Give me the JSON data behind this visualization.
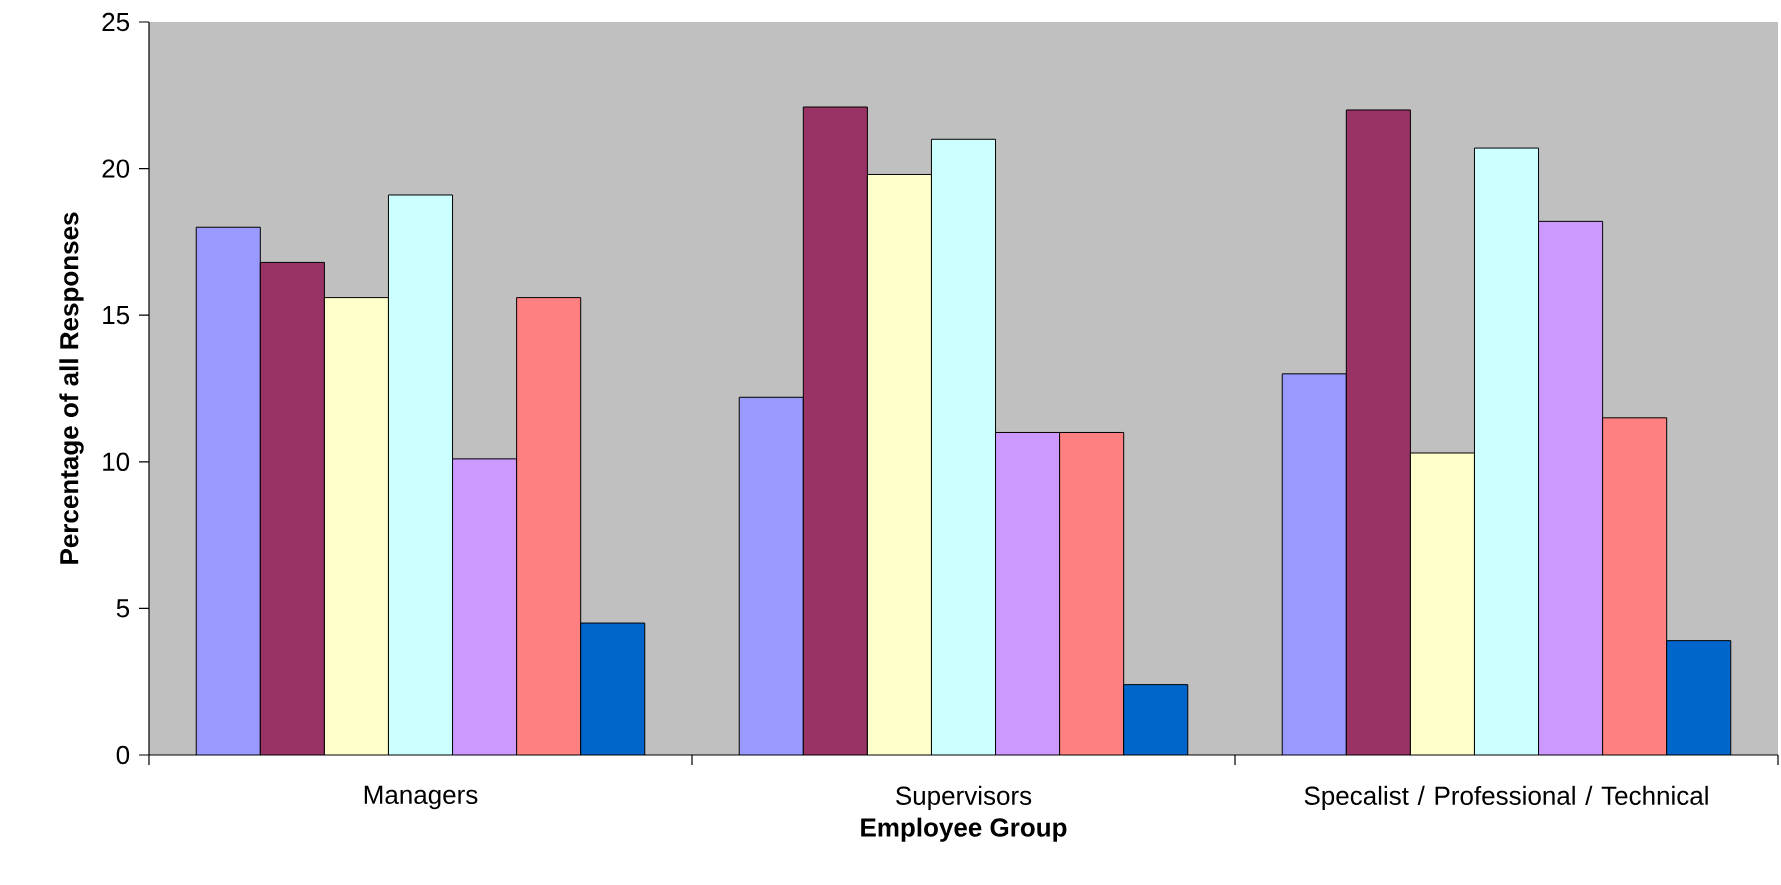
{
  "chart_data": {
    "type": "bar",
    "xlabel": "Employee Group",
    "ylabel": "Percentage of all Responses",
    "categories": [
      "Managers",
      "Supervisors",
      "Specalist / Professional / Technical"
    ],
    "series": [
      {
        "color": "#9999ff",
        "values": [
          18.0,
          12.2,
          13.0
        ]
      },
      {
        "color": "#993366",
        "values": [
          16.8,
          22.1,
          22.0
        ]
      },
      {
        "color": "#ffffcc",
        "values": [
          15.6,
          19.8,
          10.3
        ]
      },
      {
        "color": "#ccffff",
        "values": [
          19.1,
          21.0,
          20.7
        ]
      },
      {
        "color": "#cc99ff",
        "values": [
          10.1,
          11.0,
          18.2
        ]
      },
      {
        "color": "#ff8080",
        "values": [
          15.6,
          11.0,
          11.5
        ]
      },
      {
        "color": "#0066cc",
        "values": [
          4.5,
          2.4,
          3.9
        ]
      }
    ],
    "ylim": [
      0,
      25
    ],
    "yticks": [
      0,
      5,
      10,
      15,
      20,
      25
    ]
  }
}
